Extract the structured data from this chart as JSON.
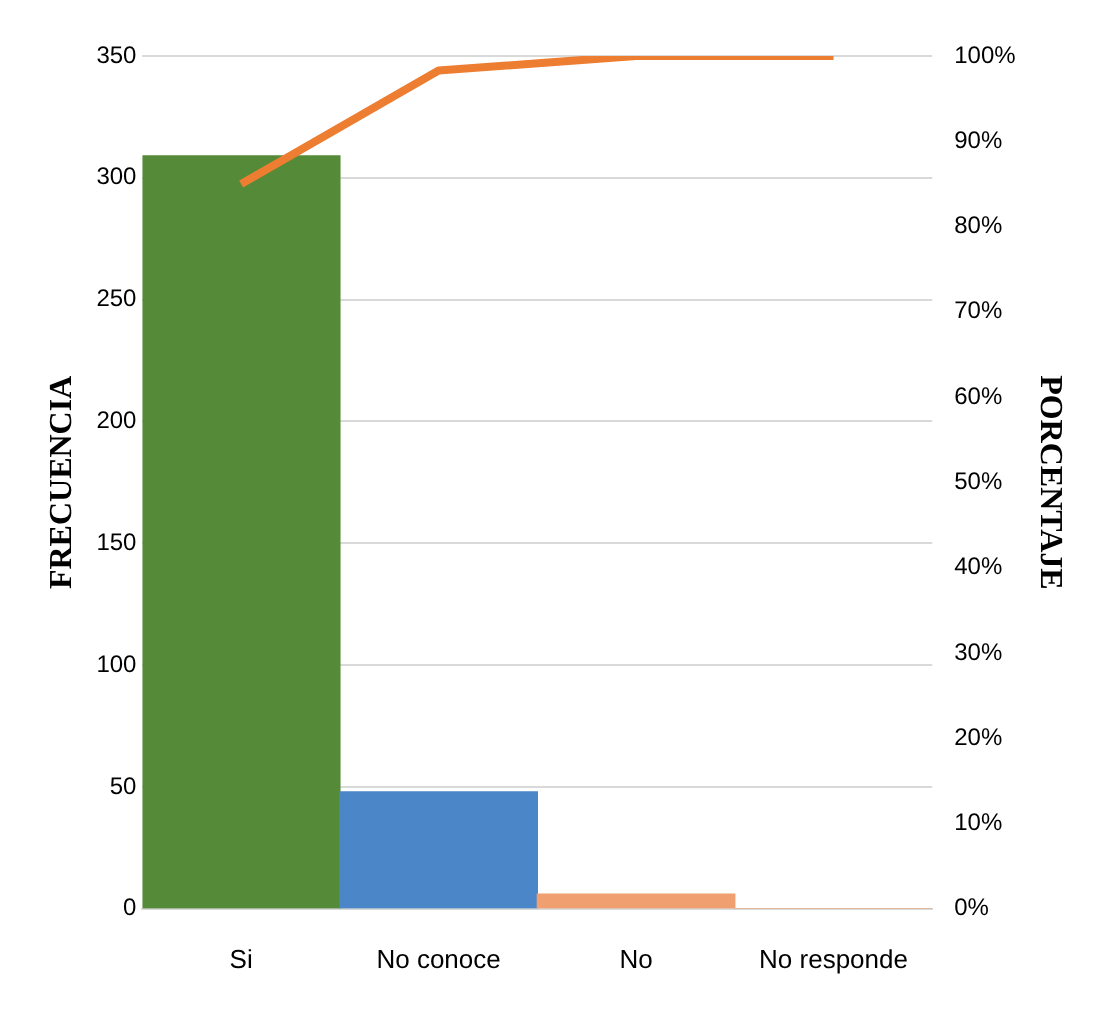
{
  "chart_data": {
    "type": "bar",
    "categories": [
      "Si",
      "No conoce",
      "No",
      "No responde"
    ],
    "ylabel": "FRECUENCIA",
    "y2label": "PORCENTAJE",
    "series": [
      {
        "values": [
          309,
          48,
          6,
          0
        ],
        "colors": [
          "#558b38",
          "#4a86c8",
          "#f0a070",
          "#f0a070"
        ]
      },
      {
        "type": "line",
        "axis": "y2",
        "color": "#ed7d31",
        "values": [
          85,
          98.3,
          100,
          100
        ]
      }
    ],
    "ylim": [
      0,
      350
    ],
    "yticks": [
      0,
      50,
      100,
      150,
      200,
      250,
      300,
      350
    ],
    "y2lim": [
      0,
      100
    ],
    "y2ticks": [
      {
        "value": 0,
        "label": "0%"
      },
      {
        "value": 10,
        "label": "10%"
      },
      {
        "value": 20,
        "label": "20%"
      },
      {
        "value": 30,
        "label": "30%"
      },
      {
        "value": 40,
        "label": "40%"
      },
      {
        "value": 50,
        "label": "50%"
      },
      {
        "value": 60,
        "label": "60%"
      },
      {
        "value": 70,
        "label": "70%"
      },
      {
        "value": 80,
        "label": "80%"
      },
      {
        "value": 90,
        "label": "90%"
      },
      {
        "value": 100,
        "label": "100%"
      }
    ],
    "grid": "y",
    "marker": "none",
    "legend": false
  }
}
